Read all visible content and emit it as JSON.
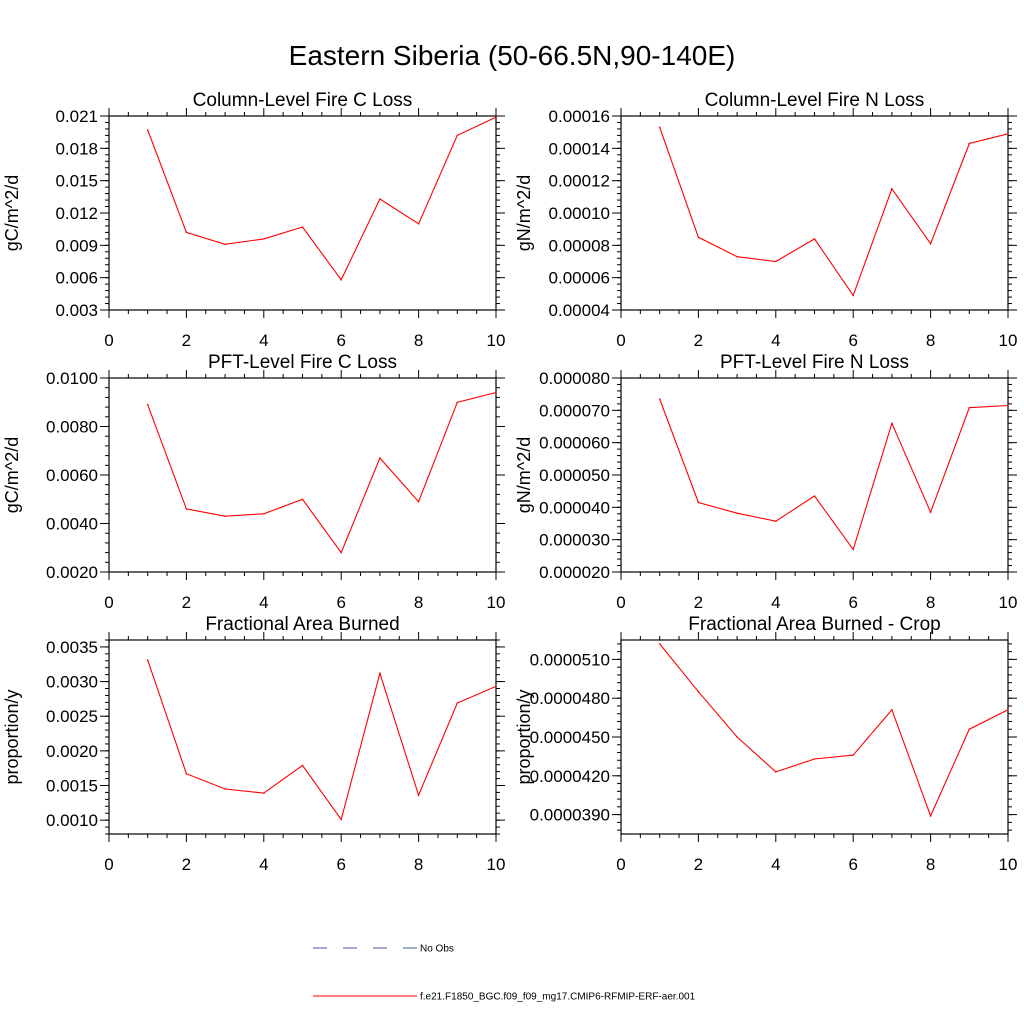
{
  "figure": {
    "title": "Eastern Siberia (50-66.5N,90-140E)",
    "legend": {
      "entries": [
        {
          "name": "No Obs",
          "color": "#4a5a9a",
          "dash": true
        },
        {
          "name": "f.e21.F1850_BGC.f09_f09_mg17.CMIP6-RFMIP-ERF-aer.001",
          "color": "#ff0000",
          "dash": false
        }
      ]
    }
  },
  "chart_data": [
    {
      "type": "line",
      "title": "Column-Level Fire C Loss",
      "ylabel": "gC/m^2/d",
      "xlim": [
        0,
        10
      ],
      "ylim": [
        0.003,
        0.021
      ],
      "xticks": [
        0,
        2,
        4,
        6,
        8,
        10
      ],
      "xtick_labels": [
        "0",
        "2",
        "4",
        "6",
        "8",
        "10"
      ],
      "yticks": [
        0.003,
        0.006,
        0.009,
        0.012,
        0.015,
        0.018,
        0.021
      ],
      "ytick_labels": [
        "0.003",
        "0.006",
        "0.009",
        "0.012",
        "0.015",
        "0.018",
        "0.021"
      ],
      "y_minor_step": 0.0006,
      "series": [
        {
          "color": "#ff0000",
          "x": [
            1,
            2,
            3,
            4,
            5,
            6,
            7,
            8,
            9,
            10
          ],
          "values": [
            0.0197,
            0.0102,
            0.0091,
            0.0096,
            0.0107,
            0.0058,
            0.0133,
            0.011,
            0.0192,
            0.0209
          ]
        }
      ]
    },
    {
      "type": "line",
      "title": "Column-Level Fire N Loss",
      "ylabel": "gN/m^2/d",
      "xlim": [
        0,
        10
      ],
      "ylim": [
        4e-05,
        0.00016
      ],
      "xticks": [
        0,
        2,
        4,
        6,
        8,
        10
      ],
      "xtick_labels": [
        "0",
        "2",
        "4",
        "6",
        "8",
        "10"
      ],
      "yticks": [
        4e-05,
        6e-05,
        8e-05,
        0.0001,
        0.00012,
        0.00014,
        0.00016
      ],
      "ytick_labels": [
        "0.00004",
        "0.00006",
        "0.00008",
        "0.00010",
        "0.00012",
        "0.00014",
        "0.00016"
      ],
      "y_minor_step": 4e-06,
      "series": [
        {
          "color": "#ff0000",
          "x": [
            1,
            2,
            3,
            4,
            5,
            6,
            7,
            8,
            9,
            10
          ],
          "values": [
            0.000153,
            8.5e-05,
            7.3e-05,
            7e-05,
            8.4e-05,
            4.9e-05,
            0.000115,
            8.1e-05,
            0.000143,
            0.000149
          ]
        }
      ]
    },
    {
      "type": "line",
      "title": "PFT-Level Fire C Loss",
      "ylabel": "gC/m^2/d",
      "xlim": [
        0,
        10
      ],
      "ylim": [
        0.002,
        0.01
      ],
      "xticks": [
        0,
        2,
        4,
        6,
        8,
        10
      ],
      "xtick_labels": [
        "0",
        "2",
        "4",
        "6",
        "8",
        "10"
      ],
      "yticks": [
        0.002,
        0.004,
        0.006,
        0.008,
        0.01
      ],
      "ytick_labels": [
        "0.0020",
        "0.0040",
        "0.0060",
        "0.0080",
        "0.0100"
      ],
      "y_minor_step": 0.0004,
      "series": [
        {
          "color": "#ff0000",
          "x": [
            1,
            2,
            3,
            4,
            5,
            6,
            7,
            8,
            9,
            10
          ],
          "values": [
            0.0089,
            0.0046,
            0.0043,
            0.0044,
            0.005,
            0.0028,
            0.0067,
            0.0049,
            0.009,
            0.0094
          ]
        }
      ]
    },
    {
      "type": "line",
      "title": "PFT-Level Fire N Loss",
      "ylabel": "gN/m^2/d",
      "xlim": [
        0,
        10
      ],
      "ylim": [
        2e-05,
        8e-05
      ],
      "xticks": [
        0,
        2,
        4,
        6,
        8,
        10
      ],
      "xtick_labels": [
        "0",
        "2",
        "4",
        "6",
        "8",
        "10"
      ],
      "yticks": [
        2e-05,
        3e-05,
        4e-05,
        5e-05,
        6e-05,
        7e-05,
        8e-05
      ],
      "ytick_labels": [
        "0.000020",
        "0.000030",
        "0.000040",
        "0.000050",
        "0.000060",
        "0.000070",
        "0.000080"
      ],
      "y_minor_step": 2e-06,
      "series": [
        {
          "color": "#ff0000",
          "x": [
            1,
            2,
            3,
            4,
            5,
            6,
            7,
            8,
            9,
            10
          ],
          "values": [
            7.35e-05,
            4.15e-05,
            3.82e-05,
            3.57e-05,
            4.35e-05,
            2.7e-05,
            6.6e-05,
            3.85e-05,
            7.08e-05,
            7.15e-05
          ]
        }
      ]
    },
    {
      "type": "line",
      "title": "Fractional Area Burned",
      "ylabel": "proportion/y",
      "xlim": [
        0,
        10
      ],
      "ylim": [
        0.0008,
        0.0036
      ],
      "xticks": [
        0,
        2,
        4,
        6,
        8,
        10
      ],
      "xtick_labels": [
        "0",
        "2",
        "4",
        "6",
        "8",
        "10"
      ],
      "yticks": [
        0.001,
        0.0015,
        0.002,
        0.0025,
        0.003,
        0.0035
      ],
      "ytick_labels": [
        "0.0010",
        "0.0015",
        "0.0020",
        "0.0025",
        "0.0030",
        "0.0035"
      ],
      "y_minor_step": 0.0001,
      "series": [
        {
          "color": "#ff0000",
          "x": [
            1,
            2,
            3,
            4,
            5,
            6,
            7,
            8,
            9,
            10
          ],
          "values": [
            0.00331,
            0.00167,
            0.00145,
            0.00139,
            0.00179,
            0.00101,
            0.00312,
            0.00136,
            0.00269,
            0.00293
          ]
        }
      ]
    },
    {
      "type": "line",
      "title": "Fractional Area Burned - Crop",
      "ylabel": "proportion/y",
      "xlim": [
        0,
        10
      ],
      "ylim": [
        3.75e-05,
        5.25e-05
      ],
      "xticks": [
        0,
        2,
        4,
        6,
        8,
        10
      ],
      "xtick_labels": [
        "0",
        "2",
        "4",
        "6",
        "8",
        "10"
      ],
      "yticks": [
        3.9e-05,
        4.2e-05,
        4.5e-05,
        4.8e-05,
        5.1e-05
      ],
      "ytick_labels": [
        "0.0000390",
        "0.0000420",
        "0.0000450",
        "0.0000480",
        "0.0000510"
      ],
      "y_minor_step": 6e-07,
      "series": [
        {
          "color": "#ff0000",
          "x": [
            1,
            2,
            3,
            4,
            5,
            6,
            7,
            8,
            9,
            10
          ],
          "values": [
            5.22e-05,
            4.85e-05,
            4.5e-05,
            4.23e-05,
            4.33e-05,
            4.36e-05,
            4.71e-05,
            3.89e-05,
            4.56e-05,
            4.71e-05
          ]
        }
      ]
    }
  ]
}
